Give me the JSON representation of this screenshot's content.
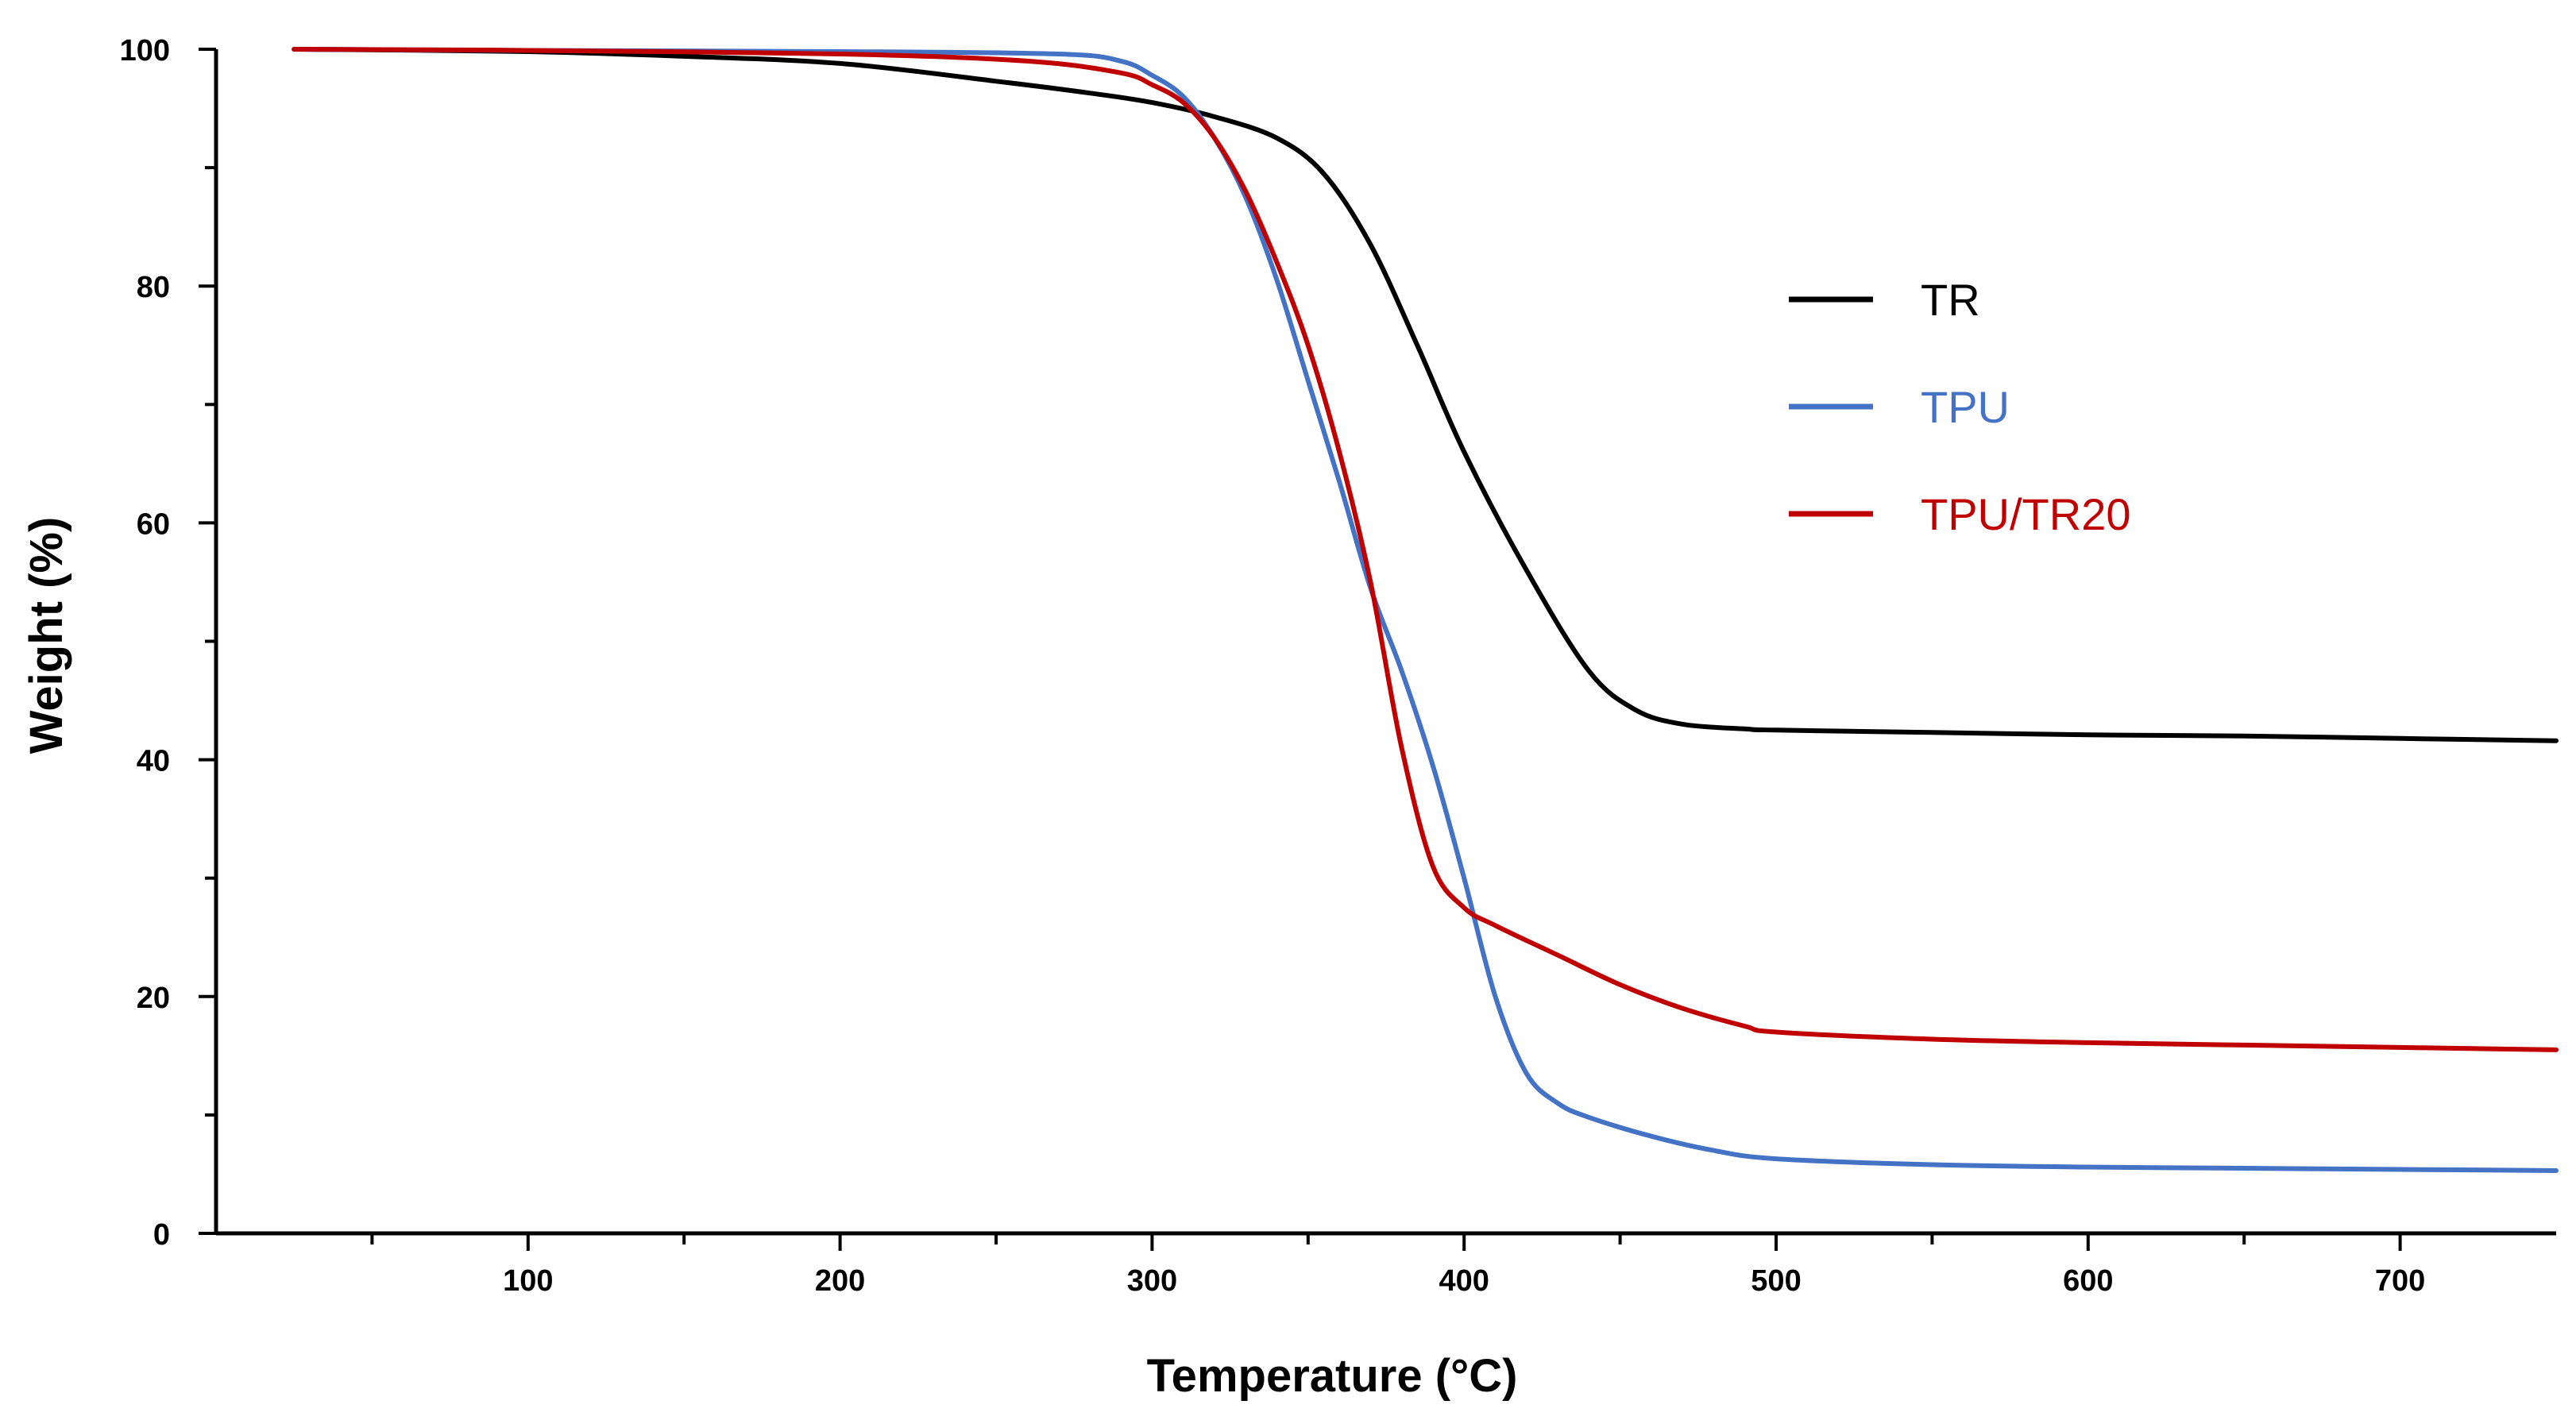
{
  "chart_data": {
    "type": "line",
    "title": "",
    "xlabel": "Temperature (°C)",
    "ylabel": "Weight (%)",
    "xlim": [
      0,
      750
    ],
    "ylim": [
      0,
      100
    ],
    "x_ticks": [
      100,
      200,
      300,
      400,
      500,
      600,
      700
    ],
    "x_tick_labels": [
      "100",
      "200",
      "300",
      "400",
      "500",
      "600",
      "700"
    ],
    "y_ticks": [
      0,
      20,
      40,
      60,
      80,
      100
    ],
    "y_tick_labels": [
      "0",
      "20",
      "40",
      "60",
      "80",
      "100"
    ],
    "grid": false,
    "legend_position": "right, upper-middle",
    "series": [
      {
        "name": "TR",
        "color": "#000000",
        "x": [
          25,
          100,
          150,
          200,
          250,
          280,
          300,
          320,
          340,
          355,
          370,
          385,
          400,
          420,
          440,
          455,
          470,
          490,
          500,
          550,
          600,
          650,
          700,
          750
        ],
        "y": [
          100,
          99.8,
          99.4,
          98.8,
          97.3,
          96.3,
          95.5,
          94.3,
          92.5,
          89.5,
          83.5,
          75,
          66,
          56,
          47.5,
          44.2,
          43,
          42.6,
          42.5,
          42.3,
          42.1,
          42,
          41.8,
          41.6
        ]
      },
      {
        "name": "TPU",
        "color": "#4472C4",
        "x": [
          25,
          100,
          200,
          270,
          290,
          300,
          310,
          320,
          330,
          340,
          350,
          360,
          370,
          380,
          390,
          400,
          410,
          420,
          430,
          440,
          460,
          480,
          500,
          550,
          600,
          650,
          700,
          750
        ],
        "y": [
          100,
          99.9,
          99.8,
          99.6,
          99,
          97.8,
          96,
          92.5,
          87.5,
          80.5,
          72,
          63.5,
          54.5,
          47.5,
          39.5,
          30,
          20,
          13.5,
          11,
          9.8,
          8.2,
          7,
          6.3,
          5.8,
          5.6,
          5.5,
          5.4,
          5.3
        ]
      },
      {
        "name": "TPU/TR20",
        "color": "#C00000",
        "x": [
          25,
          100,
          200,
          260,
          290,
          300,
          310,
          320,
          330,
          340,
          350,
          360,
          370,
          380,
          390,
          400,
          410,
          430,
          450,
          470,
          490,
          500,
          550,
          600,
          650,
          700,
          750
        ],
        "y": [
          100,
          99.9,
          99.6,
          99,
          98,
          97,
          95.5,
          92.5,
          88,
          82,
          75,
          66,
          55,
          41,
          31,
          27.5,
          26,
          23.5,
          21,
          19,
          17.5,
          17,
          16.4,
          16.1,
          15.9,
          15.7,
          15.5
        ]
      }
    ]
  }
}
